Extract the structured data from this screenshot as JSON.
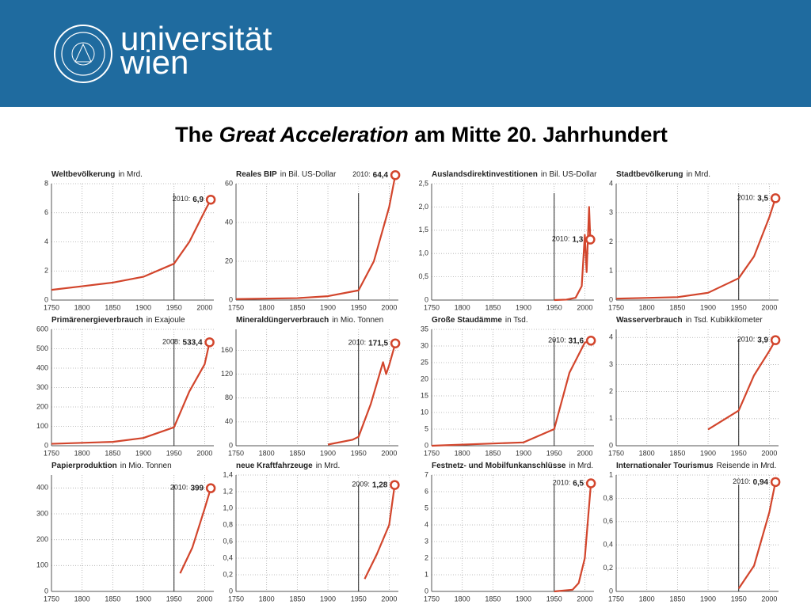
{
  "header": {
    "logo_line1": "universität",
    "logo_line2": "wien"
  },
  "title": {
    "part1": "The ",
    "part2": "Great Acceleration",
    "part3": " am Mitte 20. Jahrhundert"
  },
  "chart_data": [
    {
      "type": "line",
      "title": "Weltbevölkerung",
      "unit": "in Mrd.",
      "color": "#d2452c",
      "xlim": [
        1750,
        2015
      ],
      "xticks": [
        1750,
        1800,
        1850,
        1900,
        1950,
        2000
      ],
      "ylim": [
        0,
        8
      ],
      "yticks": [
        0,
        2,
        4,
        6,
        8
      ],
      "grid": true,
      "marker_x": 1950,
      "x": [
        1750,
        1800,
        1850,
        1900,
        1950,
        1975,
        2000,
        2010
      ],
      "values": [
        0.7,
        0.95,
        1.2,
        1.6,
        2.5,
        4,
        6.1,
        6.9
      ],
      "annotation": {
        "prefix": "2010:",
        "value": 6.9,
        "label": "6,9"
      }
    },
    {
      "type": "line",
      "title": "Reales BIP",
      "unit": "in Bil. US-Dollar",
      "color": "#d2452c",
      "xlim": [
        1750,
        2015
      ],
      "xticks": [
        1750,
        1800,
        1850,
        1900,
        1950,
        2000
      ],
      "ylim": [
        0,
        60
      ],
      "yticks": [
        0,
        20,
        40,
        60
      ],
      "grid": true,
      "marker_x": 1950,
      "x": [
        1750,
        1850,
        1900,
        1950,
        1975,
        2000,
        2010
      ],
      "values": [
        0.5,
        1,
        2,
        5,
        20,
        48,
        64.4
      ],
      "annotation": {
        "prefix": "2010:",
        "value": 64.4,
        "label": "64,4"
      }
    },
    {
      "type": "line",
      "title": "Auslandsdirektinvestitionen",
      "unit": "in Bil. US-Dollar",
      "color": "#d2452c",
      "xlim": [
        1750,
        2015
      ],
      "xticks": [
        1750,
        1800,
        1850,
        1900,
        1950,
        2000
      ],
      "ylim": [
        0,
        2.5
      ],
      "yticks": [
        0,
        {
          "value": 0.5,
          "label": "0,5"
        },
        {
          "value": 1,
          "label": "1,0"
        },
        {
          "value": 1.5,
          "label": "1,5"
        },
        {
          "value": 2,
          "label": "2,0"
        },
        {
          "value": 2.5,
          "label": "2,5"
        }
      ],
      "grid": true,
      "marker_x": 1950,
      "x": [
        1950,
        1970,
        1985,
        1995,
        2000,
        2003,
        2007,
        2009
      ],
      "values": [
        0,
        0.01,
        0.05,
        0.3,
        1.4,
        0.6,
        2.0,
        1.3
      ],
      "annotation": {
        "prefix": "2010:",
        "value": 1.3,
        "label": "1,3"
      }
    },
    {
      "type": "line",
      "title": "Stadtbevölkerung",
      "unit": "in Mrd.",
      "color": "#d2452c",
      "xlim": [
        1750,
        2015
      ],
      "xticks": [
        1750,
        1800,
        1850,
        1900,
        1950,
        2000
      ],
      "ylim": [
        0,
        4
      ],
      "yticks": [
        0,
        1,
        2,
        3,
        4
      ],
      "grid": true,
      "marker_x": 1950,
      "x": [
        1750,
        1850,
        1900,
        1950,
        1975,
        2000,
        2010
      ],
      "values": [
        0.05,
        0.1,
        0.25,
        0.75,
        1.5,
        2.85,
        3.5
      ],
      "annotation": {
        "prefix": "2010:",
        "value": 3.5,
        "label": "3,5"
      }
    },
    {
      "type": "line",
      "title": "Primärenergieverbrauch",
      "unit": "in Exajoule",
      "color": "#d2452c",
      "xlim": [
        1750,
        2015
      ],
      "xticks": [
        1750,
        1800,
        1850,
        1900,
        1950,
        2000
      ],
      "ylim": [
        0,
        600
      ],
      "yticks": [
        0,
        100,
        200,
        300,
        400,
        500,
        600
      ],
      "grid": true,
      "marker_x": 1950,
      "x": [
        1750,
        1850,
        1900,
        1950,
        1975,
        2000,
        2008
      ],
      "values": [
        10,
        20,
        40,
        95,
        280,
        420,
        533.4
      ],
      "annotation": {
        "prefix": "2008:",
        "value": 533.4,
        "label": "533,4"
      }
    },
    {
      "type": "line",
      "title": "Mineraldüngerverbrauch",
      "unit": "in Mio. Tonnen",
      "color": "#d2452c",
      "xlim": [
        1750,
        2015
      ],
      "xticks": [
        1750,
        1800,
        1850,
        1900,
        1950,
        2000
      ],
      "ylim": [
        0,
        195
      ],
      "yticks": [
        0,
        40,
        80,
        120,
        160
      ],
      "grid": true,
      "marker_x": 1950,
      "x": [
        1900,
        1940,
        1950,
        1970,
        1990,
        1995,
        2000,
        2010
      ],
      "values": [
        2,
        10,
        15,
        70,
        140,
        120,
        135,
        171.5
      ],
      "annotation": {
        "prefix": "2010:",
        "value": 171.5,
        "label": "171,5"
      }
    },
    {
      "type": "line",
      "title": "Große Staudämme",
      "unit": "in Tsd.",
      "color": "#d2452c",
      "xlim": [
        1750,
        2015
      ],
      "xticks": [
        1750,
        1800,
        1850,
        1900,
        1950,
        2000
      ],
      "ylim": [
        0,
        35
      ],
      "yticks": [
        0,
        5,
        10,
        15,
        20,
        25,
        30,
        35
      ],
      "grid": true,
      "marker_x": 1950,
      "x": [
        1750,
        1900,
        1950,
        1975,
        2000,
        2010
      ],
      "values": [
        0,
        1,
        5,
        22,
        31,
        31.6
      ],
      "annotation": {
        "prefix": "2010:",
        "value": 31.6,
        "label": "31,6"
      }
    },
    {
      "type": "line",
      "title": "Wasserverbrauch",
      "unit": "in Tsd. Kubikkilometer",
      "color": "#d2452c",
      "xlim": [
        1750,
        2015
      ],
      "xticks": [
        1750,
        1800,
        1850,
        1900,
        1950,
        2000
      ],
      "ylim": [
        0,
        4.3
      ],
      "yticks": [
        0,
        1,
        2,
        3,
        4
      ],
      "grid": true,
      "marker_x": 1950,
      "x": [
        1900,
        1950,
        1975,
        2000,
        2010
      ],
      "values": [
        0.6,
        1.3,
        2.6,
        3.5,
        3.9
      ],
      "annotation": {
        "prefix": "2010:",
        "value": 3.9,
        "label": "3,9"
      }
    },
    {
      "type": "line",
      "title": "Papierproduktion",
      "unit": "in Mio. Tonnen",
      "color": "#d2452c",
      "xlim": [
        1750,
        2015
      ],
      "xticks": [
        1750,
        1800,
        1850,
        1900,
        1950,
        2000
      ],
      "ylim": [
        0,
        450
      ],
      "yticks": [
        0,
        100,
        200,
        300,
        400
      ],
      "grid": true,
      "marker_x": 1950,
      "x": [
        1960,
        1980,
        2000,
        2010
      ],
      "values": [
        70,
        170,
        320,
        399
      ],
      "annotation": {
        "prefix": "2010:",
        "value": 399,
        "label": "399"
      }
    },
    {
      "type": "line",
      "title": "neue Kraftfahrzeuge",
      "unit": "in Mrd.",
      "color": "#d2452c",
      "xlim": [
        1750,
        2015
      ],
      "xticks": [
        1750,
        1800,
        1850,
        1900,
        1950,
        2000
      ],
      "ylim": [
        0,
        1.4
      ],
      "yticks": [
        0,
        {
          "value": 0.2,
          "label": "0,2"
        },
        {
          "value": 0.4,
          "label": "0,4"
        },
        {
          "value": 0.6,
          "label": "0,6"
        },
        {
          "value": 0.8,
          "label": "0,8"
        },
        {
          "value": 1,
          "label": "1,0"
        },
        {
          "value": 1.2,
          "label": "1,2"
        },
        {
          "value": 1.4,
          "label": "1,4"
        }
      ],
      "grid": true,
      "marker_x": 1950,
      "x": [
        1960,
        1980,
        2000,
        2009
      ],
      "values": [
        0.15,
        0.45,
        0.8,
        1.28
      ],
      "annotation": {
        "prefix": "2009:",
        "value": 1.28,
        "label": "1,28"
      }
    },
    {
      "type": "line",
      "title": "Festnetz- und Mobilfunkanschlüsse",
      "unit": "in Mrd.",
      "color": "#d2452c",
      "xlim": [
        1750,
        2015
      ],
      "xticks": [
        1750,
        1800,
        1850,
        1900,
        1950,
        2000
      ],
      "ylim": [
        0,
        7
      ],
      "yticks": [
        0,
        1,
        2,
        3,
        4,
        5,
        6,
        7
      ],
      "grid": true,
      "marker_x": 1950,
      "x": [
        1950,
        1980,
        1990,
        2000,
        2010
      ],
      "values": [
        0,
        0.1,
        0.5,
        2,
        6.5
      ],
      "annotation": {
        "prefix": "2010:",
        "value": 6.5,
        "label": "6,5"
      }
    },
    {
      "type": "line",
      "title": "Internationaler Tourismus",
      "unit": "Reisende in Mrd.",
      "color": "#d2452c",
      "xlim": [
        1750,
        2015
      ],
      "xticks": [
        1750,
        1800,
        1850,
        1900,
        1950,
        2000
      ],
      "ylim": [
        0,
        1
      ],
      "yticks": [
        0,
        {
          "value": 0.2,
          "label": "0,2"
        },
        {
          "value": 0.4,
          "label": "0,4"
        },
        {
          "value": 0.6,
          "label": "0,6"
        },
        {
          "value": 0.8,
          "label": "0,8"
        },
        1
      ],
      "grid": true,
      "marker_x": 1950,
      "x": [
        1950,
        1975,
        2000,
        2010
      ],
      "values": [
        0.025,
        0.22,
        0.68,
        0.94
      ],
      "annotation": {
        "prefix": "2010:",
        "value": 0.94,
        "label": "0,94"
      }
    }
  ]
}
